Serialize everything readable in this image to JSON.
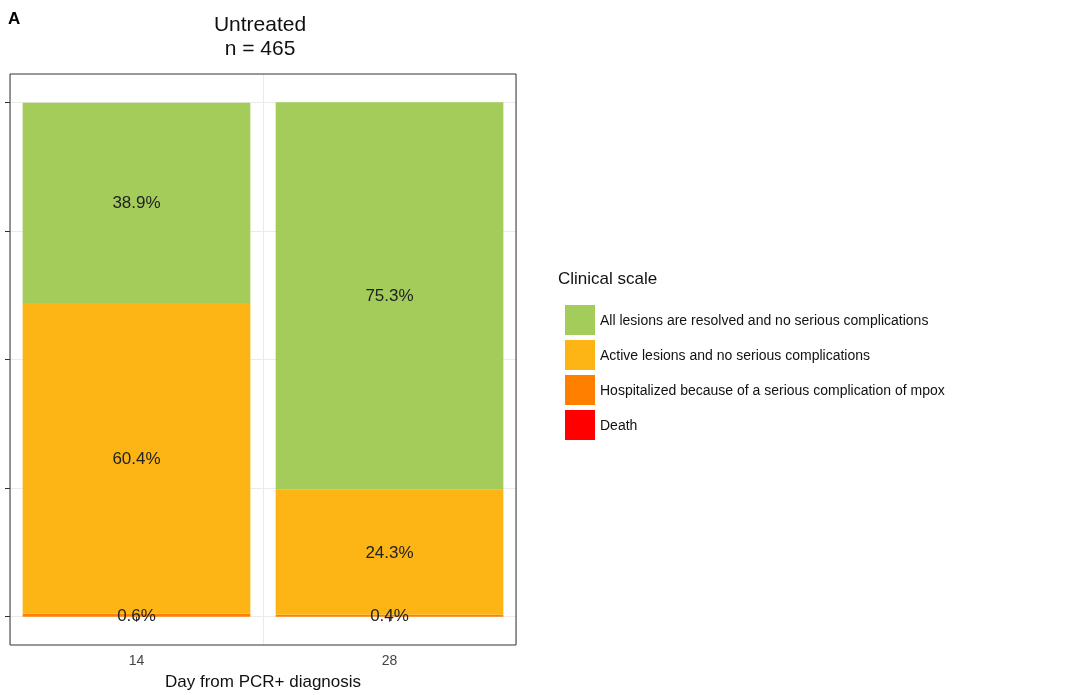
{
  "chart_data": {
    "type": "bar",
    "stacked": true,
    "title": "Untreated\nn = 465",
    "xlabel": "Day from PCR+ diagnosis",
    "legend_title": "Clinical scale",
    "legend": "right",
    "annotations": [
      "A"
    ],
    "categories": [
      "14",
      "28"
    ],
    "series": [
      {
        "name": "Death",
        "color": "#ff0000",
        "values": [
          null,
          null
        ]
      },
      {
        "name": "Hospitalized because of a serious complication of mpox",
        "color": "#ff8000",
        "values": [
          0.6,
          0.4
        ],
        "value_labels": [
          "0.6%",
          "0.4%"
        ]
      },
      {
        "name": "Active lesions and no serious complications",
        "color": "#fdb515",
        "values": [
          60.4,
          24.3
        ],
        "value_labels": [
          "60.4%",
          "24.3%"
        ]
      },
      {
        "name": "All lesions are resolved and no serious complications",
        "color": "#a3cc5a",
        "values": [
          38.9,
          75.3
        ],
        "value_labels": [
          "38.9%",
          "75.3%"
        ]
      }
    ],
    "ylim": [
      -5.5,
      105.5
    ],
    "yticks": [
      {
        "value": 0,
        "label": null
      },
      {
        "value": 25,
        "label": null
      },
      {
        "value": 50,
        "label": null
      },
      {
        "value": 75,
        "label": null
      },
      {
        "value": 100,
        "label": null
      }
    ],
    "tick_labels": "x",
    "grid": true
  }
}
